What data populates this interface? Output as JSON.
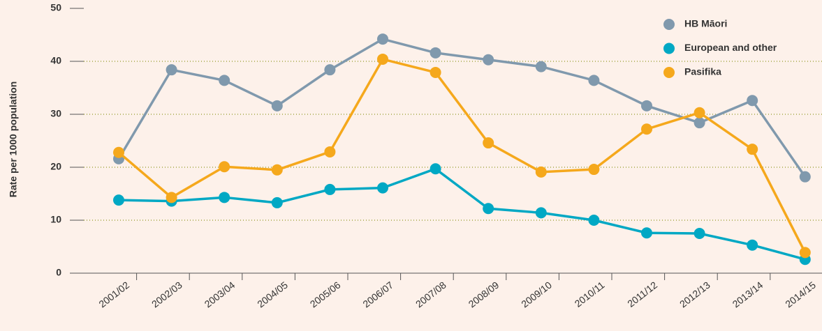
{
  "chart_data": {
    "type": "line",
    "ylabel": "Rate per 1000 population",
    "categories": [
      "2001/02",
      "2002/03",
      "2003/04",
      "2004/05",
      "2005/06",
      "2006/07",
      "2007/08",
      "2008/09",
      "2009/10",
      "2010/11",
      "2011/12",
      "2012/13",
      "2013/14",
      "2014/15"
    ],
    "series": [
      {
        "name": "HB Māori",
        "color": "#8099ad",
        "values": [
          21.6,
          38.4,
          36.4,
          31.6,
          38.4,
          44.2,
          41.6,
          40.3,
          39.0,
          36.4,
          31.6,
          28.4,
          32.6,
          18.2
        ]
      },
      {
        "name": "European and other",
        "color": "#00a8c4",
        "values": [
          13.8,
          13.6,
          14.3,
          13.3,
          15.8,
          16.1,
          19.7,
          12.2,
          11.4,
          10.0,
          7.6,
          7.5,
          5.3,
          2.6
        ]
      },
      {
        "name": "Pasifika",
        "color": "#f5a81c",
        "values": [
          22.8,
          14.3,
          20.1,
          19.5,
          22.9,
          40.4,
          37.9,
          24.6,
          19.1,
          19.6,
          27.2,
          30.3,
          23.4,
          3.9
        ]
      }
    ],
    "ylim": [
      0,
      50
    ],
    "yticks": [
      0,
      10,
      20,
      30,
      40,
      50
    ],
    "grid": true,
    "legend": "top-right"
  }
}
